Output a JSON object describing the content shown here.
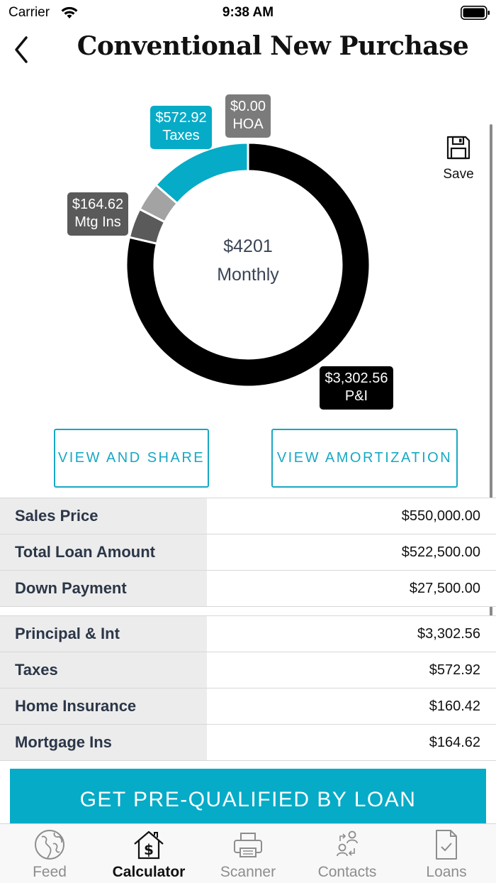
{
  "status_bar": {
    "carrier": "Carrier",
    "time": "9:38 AM"
  },
  "header": {
    "title": "Conventional New Purchase",
    "back_icon": "chevron-left-icon"
  },
  "chart_data": {
    "type": "pie",
    "style": "donut",
    "center_value": "$4201",
    "center_label": "Monthly",
    "slices": [
      {
        "label": "P&I",
        "value": 3302.56,
        "display": "$3,302.56",
        "color": "#000000"
      },
      {
        "label": "Mtg Ins",
        "value": 164.62,
        "display": "$164.62",
        "color": "#5a5a5a"
      },
      {
        "label": "Home Insurance",
        "value": 160.42,
        "display": "",
        "color": "#a3a3a3"
      },
      {
        "label": "Taxes",
        "value": 572.92,
        "display": "$572.92",
        "color": "#06abc7"
      },
      {
        "label": "HOA",
        "value": 0.0,
        "display": "$0.00",
        "color": "#7b7b7b"
      }
    ],
    "callouts": {
      "taxes": {
        "amount": "$572.92",
        "label": "Taxes",
        "color": "#06abc7"
      },
      "hoa": {
        "amount": "$0.00",
        "label": "HOA",
        "color": "#7b7b7b"
      },
      "mtg_ins": {
        "amount": "$164.62",
        "label": "Mtg Ins",
        "color": "#5a5a5a"
      },
      "pi": {
        "amount": "$3,302.56",
        "label": "P&I",
        "color": "#000000"
      }
    }
  },
  "save": {
    "label": "Save",
    "icon": "floppy-disk-icon"
  },
  "buttons": {
    "view_share": "VIEW AND SHARE",
    "view_amortization": "VIEW AMORTIZATION"
  },
  "loan_table": [
    {
      "label": "Sales Price",
      "value": "$550,000.00"
    },
    {
      "label": "Total Loan Amount",
      "value": "$522,500.00"
    },
    {
      "label": "Down Payment",
      "value": "$27,500.00"
    }
  ],
  "payment_table": [
    {
      "label": "Principal & Int",
      "value": "$3,302.56"
    },
    {
      "label": "Taxes",
      "value": "$572.92"
    },
    {
      "label": "Home Insurance",
      "value": "$160.42"
    },
    {
      "label": "Mortgage Ins",
      "value": "$164.62"
    }
  ],
  "cta": {
    "label": "GET PRE-QUALIFIED BY LOAN"
  },
  "tab_bar": {
    "active": "Calculator",
    "tabs": [
      {
        "label": "Feed",
        "icon": "globe-icon"
      },
      {
        "label": "Calculator",
        "icon": "house-dollar-icon"
      },
      {
        "label": "Scanner",
        "icon": "printer-icon"
      },
      {
        "label": "Contacts",
        "icon": "contacts-icon"
      },
      {
        "label": "Loans",
        "icon": "document-check-icon"
      }
    ]
  }
}
